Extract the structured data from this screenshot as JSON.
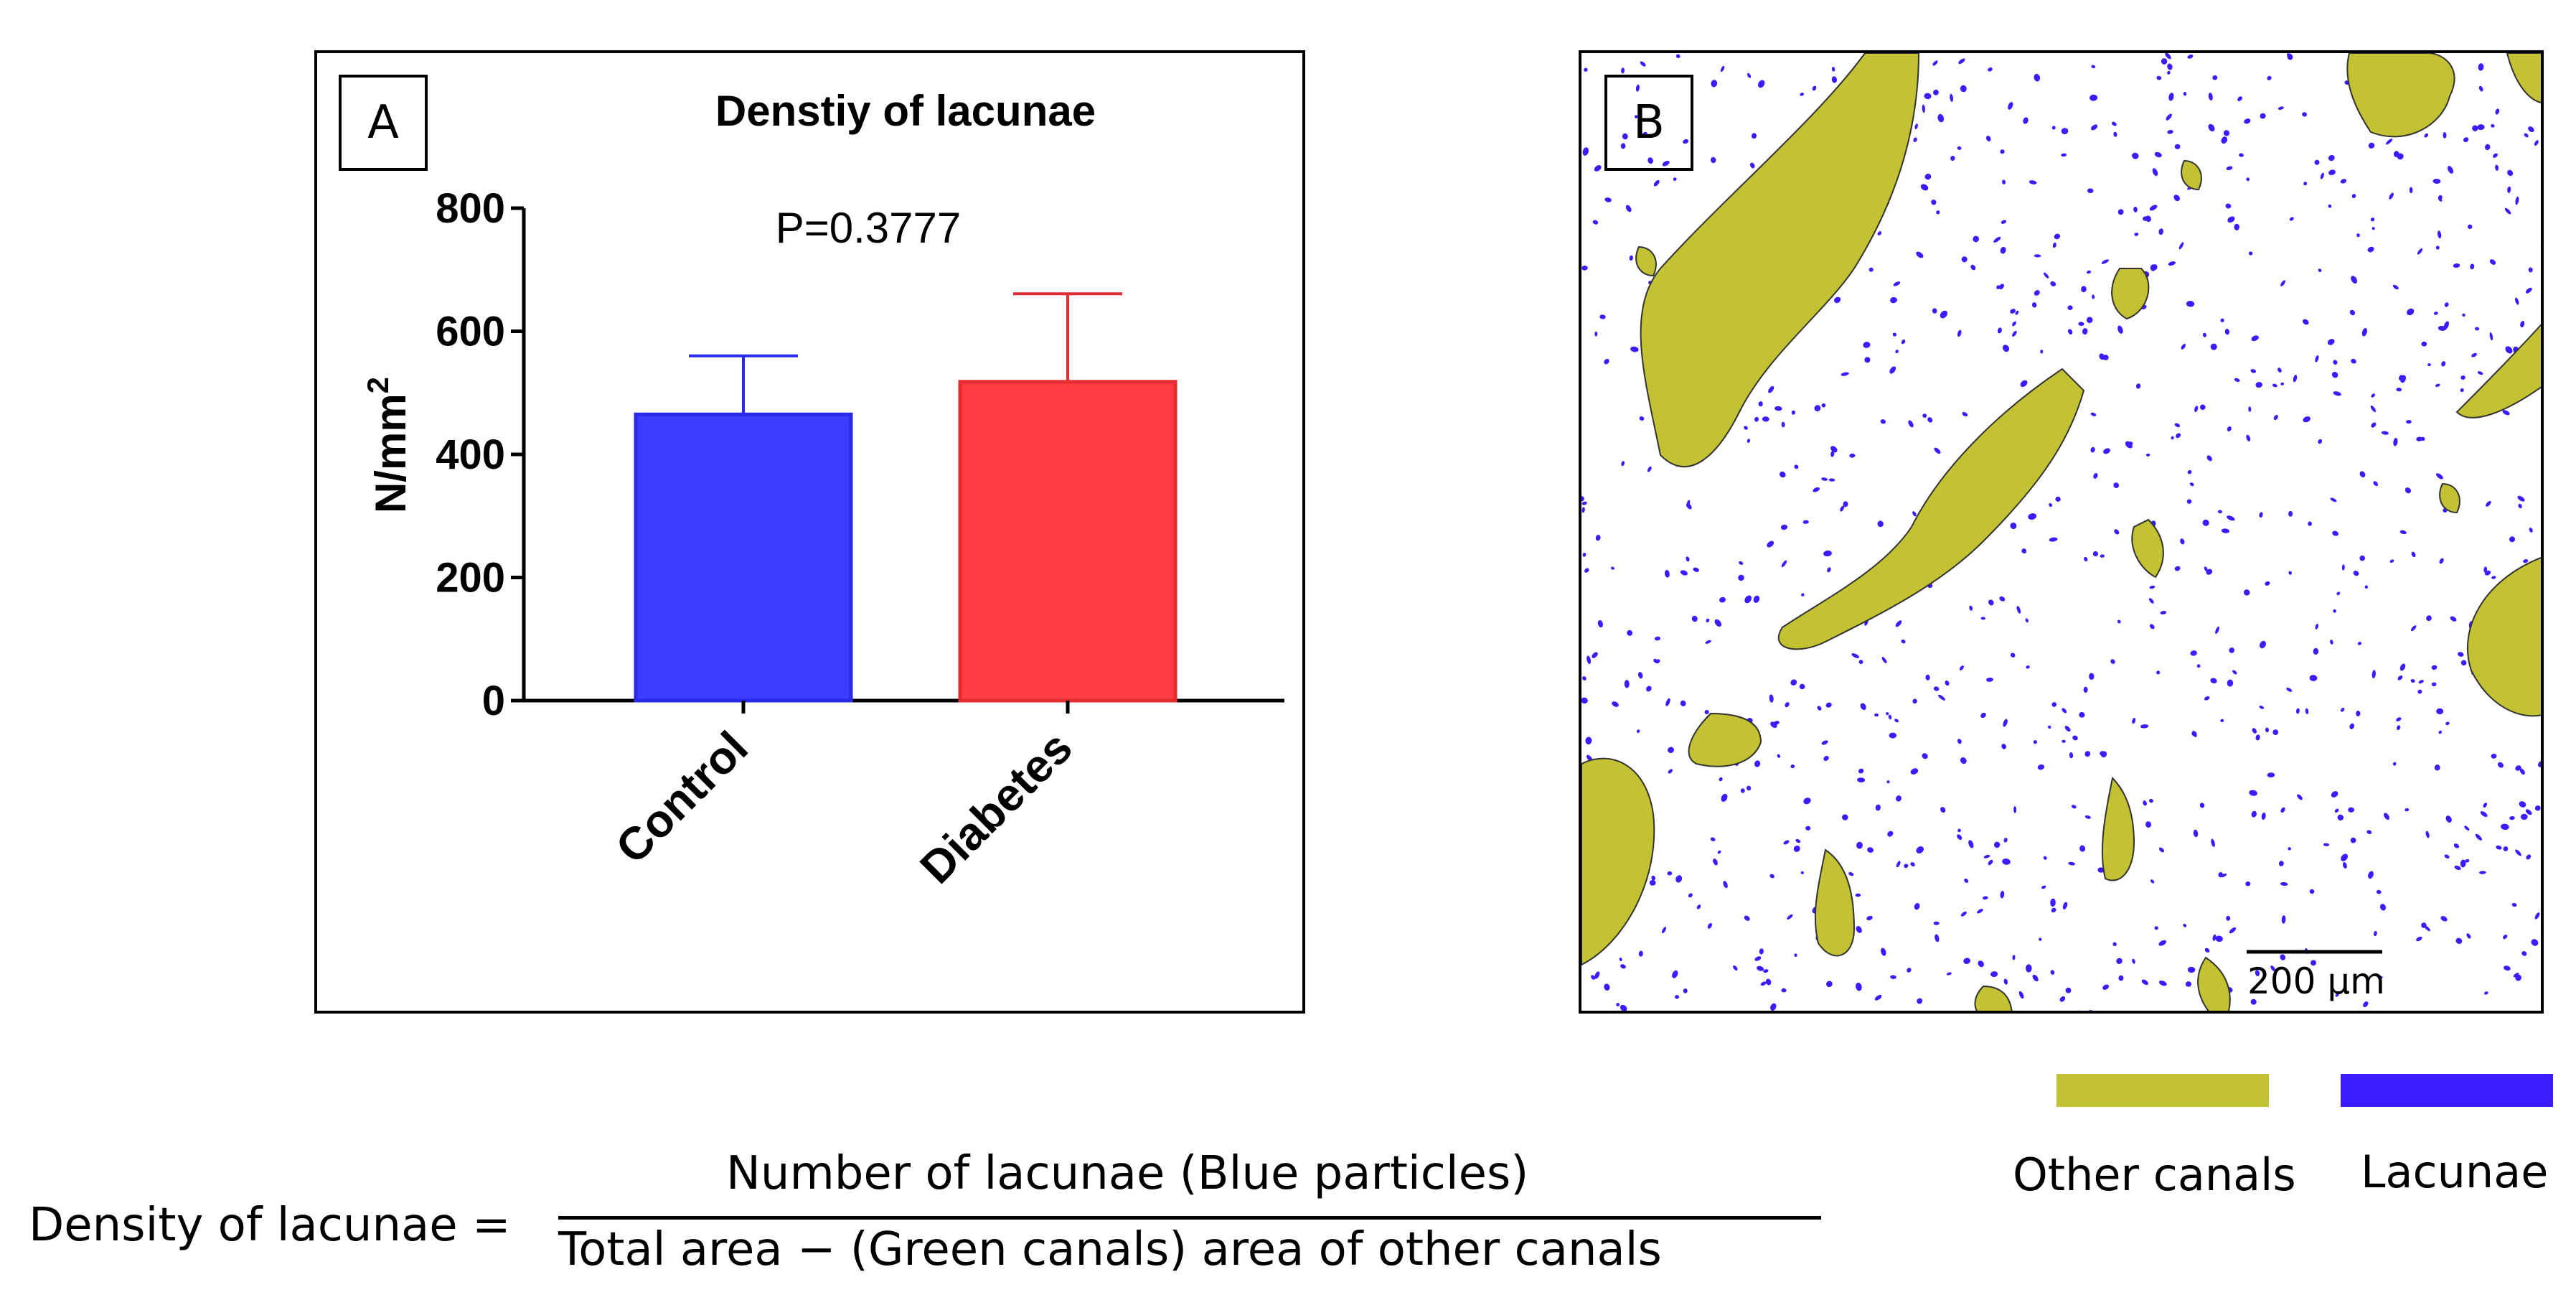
{
  "panel_a": {
    "label": "A",
    "chart_data": {
      "type": "bar",
      "title": "Denstiy of lacunae",
      "annotation": "P=0.3777",
      "ylabel": "N/mm",
      "ylabel_superscript": "2",
      "xlabel": "",
      "ylim": [
        0,
        800
      ],
      "yticks": [
        "0",
        "200",
        "400",
        "600",
        "800"
      ],
      "categories": [
        "Control",
        "Diabetes"
      ],
      "values": [
        465,
        518
      ],
      "error": [
        95,
        143
      ],
      "colors": [
        "#3c3cff",
        "#ff3c42"
      ],
      "edge_colors": [
        "#2a2ae6",
        "#e52a30"
      ],
      "grid": false
    }
  },
  "panel_b": {
    "label": "B",
    "scale_bar": "200 µm",
    "canal_color": "#c2c233",
    "lacuna_color": "#3b1cff"
  },
  "legend": {
    "items": [
      {
        "label": "Other canals",
        "color": "#c2c233"
      },
      {
        "label": "Lacunae",
        "color": "#3b1cff"
      }
    ]
  },
  "equation": {
    "lhs": "Density of lacunae =",
    "numerator": "Number of lacunae (Blue particles)",
    "denominator": "Total area − (Green canals) area of other canals"
  }
}
